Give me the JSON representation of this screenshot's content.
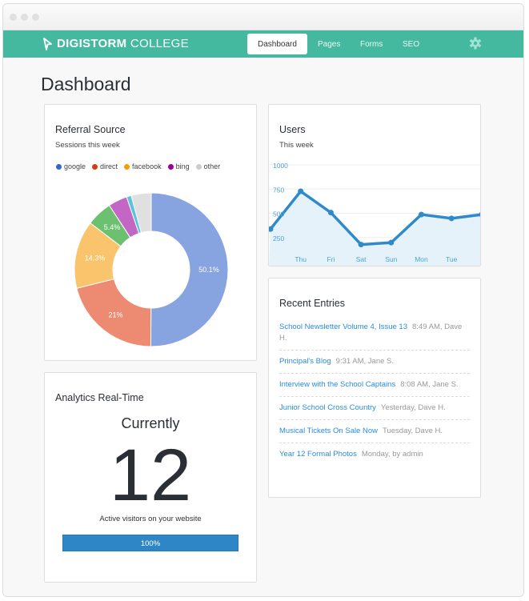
{
  "nav": {
    "brand_bold": "DIGISTORM",
    "brand_light": "COLLEGE",
    "tabs": [
      "Dashboard",
      "Pages",
      "Forms",
      "SEO"
    ],
    "active_tab": "Dashboard",
    "settings_icon": "gear-icon",
    "color": "#45b9a0"
  },
  "page_title": "Dashboard",
  "referral": {
    "title": "Referral Source",
    "subtitle": "Sessions this week",
    "legend": [
      {
        "label": "google",
        "color": "#3366cc"
      },
      {
        "label": "direct",
        "color": "#dc3912"
      },
      {
        "label": "facebook",
        "color": "#ff9900"
      },
      {
        "label": "bing",
        "color": "#990099"
      },
      {
        "label": "other",
        "color": "#cccccc"
      }
    ]
  },
  "users": {
    "title": "Users",
    "subtitle": "This week"
  },
  "recent": {
    "title": "Recent Entries",
    "entries": [
      {
        "title": "School Newsletter Volume 4, Issue 13",
        "meta": "8:49 AM, Dave H."
      },
      {
        "title": "Principal's Blog",
        "meta": "9:31 AM,  Jane S."
      },
      {
        "title": "Interview with the School Captains",
        "meta": "8:08 AM, Jane S."
      },
      {
        "title": "Junior School Cross Country",
        "meta": "Yesterday, Dave H."
      },
      {
        "title": "Musical Tickets On Sale Now",
        "meta": "Tuesday, Dave H."
      },
      {
        "title": "Year 12 Formal Photos",
        "meta": "Monday,  by admin"
      }
    ]
  },
  "analytics": {
    "title": "Analytics Real-Time",
    "heading": "Currently",
    "count": "12",
    "caption": "Active visitors on your website",
    "progress_label": "100%",
    "progress": 100
  },
  "chart_data": [
    {
      "type": "pie",
      "donut": true,
      "values": [
        50.1,
        21,
        14.3,
        5.4,
        4,
        1,
        4.2
      ],
      "labels": [
        "50.1%",
        "21%",
        "14.3%",
        "5.4%",
        "",
        "",
        ""
      ],
      "colors": [
        "#87a3e0",
        "#ec8a72",
        "#fac46c",
        "#6cc070",
        "#c367c5",
        "#5bc2e1",
        "#e0e0e0"
      ]
    },
    {
      "type": "area",
      "categories": [
        "",
        "Thu",
        "Fri",
        "Sat",
        "Sun",
        "Mon",
        "Tue",
        ""
      ],
      "values": [
        420,
        810,
        590,
        260,
        280,
        570,
        530,
        570
      ],
      "yticks": [
        250,
        500,
        750,
        1000
      ],
      "ylim": [
        25,
        1083
      ],
      "color": "#2f8ac9",
      "fill": "#e5f2f9",
      "grid": true
    }
  ]
}
